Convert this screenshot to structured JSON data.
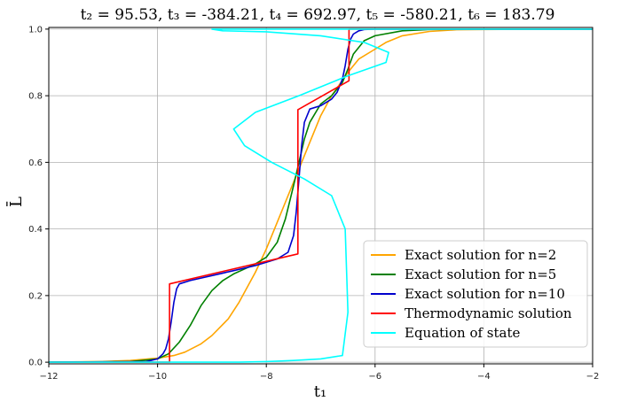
{
  "chart_data": {
    "type": "line",
    "title": "t₂ = 95.53,  t₃ = -384.21,  t₄ = 692.97,  t₅ = -580.21,  t₆ = 183.79",
    "xlabel": "t₁",
    "ylabel": "L̄",
    "xlim": [
      -12,
      -2
    ],
    "ylim": [
      -0.005,
      1.005
    ],
    "xticks": [
      -12,
      -10,
      -8,
      -6,
      -4,
      -2
    ],
    "yticks": [
      0.0,
      0.2,
      0.4,
      0.6,
      0.8,
      1.0
    ],
    "xtick_labels": [
      "−12",
      "−10",
      "−8",
      "−6",
      "−4",
      "−2"
    ],
    "ytick_labels": [
      "0.0",
      "0.2",
      "0.4",
      "0.6",
      "0.8",
      "1.0"
    ],
    "grid": true,
    "legend_position": "bottom-right",
    "series": [
      {
        "name": "Exact solution for n=2",
        "color": "#ffa500",
        "x": [
          -12,
          -11,
          -10.5,
          -10,
          -9.7,
          -9.5,
          -9.2,
          -9,
          -8.7,
          -8.5,
          -8.2,
          -8,
          -7.8,
          -7.6,
          -7.4,
          -7.2,
          -7,
          -6.8,
          -6.5,
          -6.3,
          -6,
          -5.8,
          -5.5,
          -5,
          -4.5,
          -4,
          -3,
          -2
        ],
        "y": [
          0.0,
          0.002,
          0.005,
          0.012,
          0.02,
          0.03,
          0.055,
          0.08,
          0.13,
          0.18,
          0.27,
          0.34,
          0.42,
          0.5,
          0.58,
          0.66,
          0.74,
          0.8,
          0.87,
          0.91,
          0.94,
          0.96,
          0.98,
          0.993,
          0.998,
          0.999,
          1.0,
          1.0
        ]
      },
      {
        "name": "Exact solution for n=5",
        "color": "#008000",
        "x": [
          -12,
          -10.5,
          -10,
          -9.8,
          -9.6,
          -9.4,
          -9.2,
          -9,
          -8.8,
          -8.6,
          -8.4,
          -8.2,
          -8,
          -7.8,
          -7.65,
          -7.5,
          -7.4,
          -7.3,
          -7.2,
          -7,
          -6.8,
          -6.6,
          -6.5,
          -6.4,
          -6.2,
          -6,
          -5.5,
          -5,
          -4,
          -2
        ],
        "y": [
          0.0,
          0.002,
          0.01,
          0.025,
          0.06,
          0.11,
          0.17,
          0.215,
          0.245,
          0.265,
          0.28,
          0.295,
          0.315,
          0.36,
          0.43,
          0.53,
          0.6,
          0.67,
          0.72,
          0.775,
          0.8,
          0.84,
          0.88,
          0.925,
          0.965,
          0.98,
          0.995,
          0.999,
          1.0,
          1.0
        ]
      },
      {
        "name": "Exact solution for n=10",
        "color": "#0000cd",
        "x": [
          -12,
          -10.2,
          -10,
          -9.9,
          -9.85,
          -9.8,
          -9.75,
          -9.7,
          -9.65,
          -9.6,
          -9.4,
          -9,
          -8.6,
          -8.2,
          -7.8,
          -7.6,
          -7.5,
          -7.45,
          -7.4,
          -7.35,
          -7.3,
          -7.2,
          -7,
          -6.8,
          -6.7,
          -6.6,
          -6.55,
          -6.5,
          -6.45,
          -6.4,
          -6.3,
          -6.2,
          -6,
          -2
        ],
        "y": [
          0.0,
          0.002,
          0.01,
          0.025,
          0.04,
          0.07,
          0.12,
          0.18,
          0.22,
          0.235,
          0.245,
          0.26,
          0.275,
          0.29,
          0.31,
          0.33,
          0.38,
          0.45,
          0.55,
          0.65,
          0.72,
          0.76,
          0.77,
          0.79,
          0.81,
          0.85,
          0.89,
          0.94,
          0.97,
          0.985,
          0.995,
          0.999,
          1.0,
          1.0
        ]
      },
      {
        "name": "Thermodynamic solution",
        "color": "#ff0000",
        "x": [
          -12,
          -9.78,
          -9.78,
          -7.42,
          -7.42,
          -7.42,
          -7.42,
          -6.48,
          -6.48,
          -6.48,
          -6.48,
          -2
        ],
        "y": [
          0.0,
          0.0,
          0.235,
          0.325,
          0.325,
          0.6,
          0.758,
          0.845,
          0.845,
          0.93,
          1.0,
          1.0
        ]
      },
      {
        "name": "Equation of state",
        "color": "#00ffff",
        "x": [
          -12,
          -10,
          -9.5,
          -9,
          -8.5,
          -8,
          -7.5,
          -7,
          -6.6,
          -6.5,
          -6.55,
          -6.8,
          -7.3,
          -7.9,
          -8.4,
          -8.6,
          -8.2,
          -7.4,
          -6.5,
          -5.8,
          -5.75,
          -6.2,
          -7,
          -8,
          -8.8,
          -9.0,
          -8.4,
          -6.5,
          -4,
          -2
        ],
        "y": [
          0.0,
          0.0,
          0.0,
          0.0,
          0.0,
          0.002,
          0.005,
          0.01,
          0.02,
          0.15,
          0.4,
          0.5,
          0.55,
          0.6,
          0.65,
          0.7,
          0.75,
          0.8,
          0.86,
          0.9,
          0.93,
          0.96,
          0.98,
          0.992,
          0.995,
          1.0,
          1.0,
          1.0,
          1.0,
          1.0
        ]
      }
    ]
  }
}
